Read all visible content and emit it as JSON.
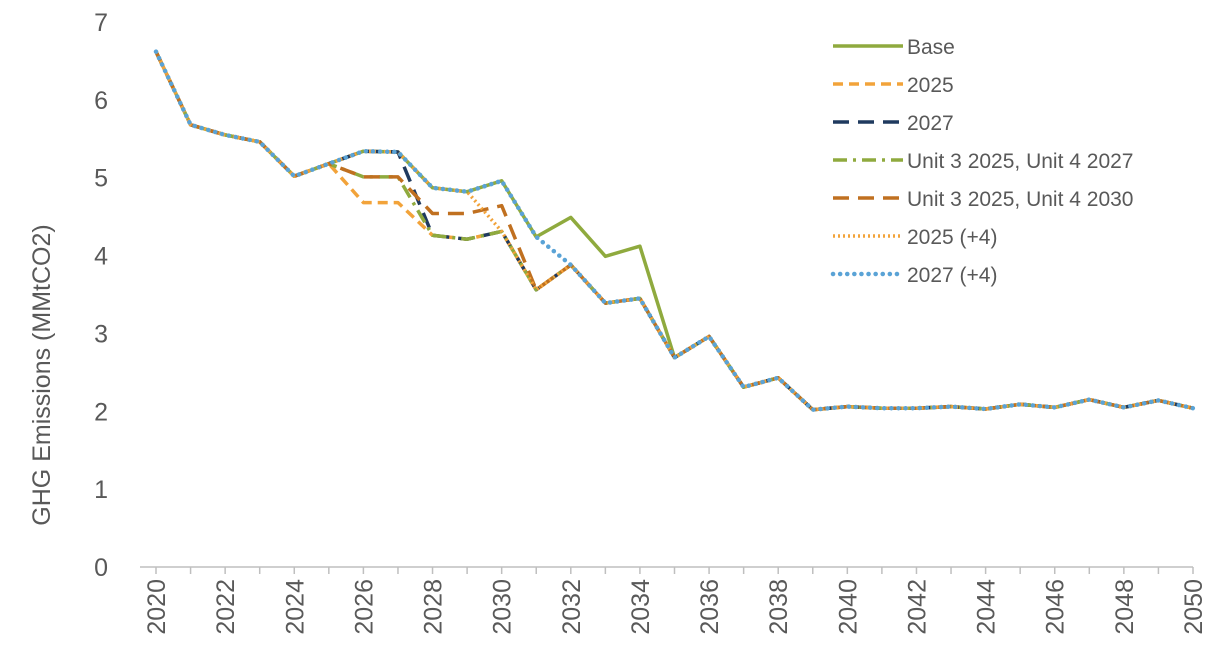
{
  "chart_data": {
    "type": "line",
    "title": "",
    "xlabel": "",
    "ylabel": "GHG Emissions (MMtCO2)",
    "ylim": [
      0,
      7
    ],
    "yticks": [
      0,
      1,
      2,
      3,
      4,
      5,
      6,
      7
    ],
    "xticks": [
      2020,
      2022,
      2024,
      2026,
      2028,
      2030,
      2032,
      2034,
      2036,
      2038,
      2040,
      2042,
      2044,
      2046,
      2048,
      2050
    ],
    "x": [
      2020,
      2021,
      2022,
      2023,
      2024,
      2025,
      2026,
      2027,
      2028,
      2029,
      2030,
      2031,
      2032,
      2033,
      2034,
      2035,
      2036,
      2037,
      2038,
      2039,
      2040,
      2041,
      2042,
      2043,
      2044,
      2045,
      2046,
      2047,
      2048,
      2049,
      2050
    ],
    "grid": false,
    "legend_position": "top-right",
    "series": [
      {
        "name": "Base",
        "color": "#8faa3e",
        "dash": "solid",
        "values": [
          6.62,
          5.68,
          5.55,
          5.46,
          5.02,
          5.18,
          5.34,
          5.33,
          4.87,
          4.82,
          4.96,
          4.24,
          4.49,
          3.99,
          4.12,
          2.69,
          2.96,
          2.31,
          2.43,
          2.02,
          2.06,
          2.04,
          2.04,
          2.06,
          2.03,
          2.09,
          2.05,
          2.15,
          2.05,
          2.14,
          2.04
        ]
      },
      {
        "name": "2025",
        "color": "#f2a33a",
        "dash": "dash",
        "values": [
          6.62,
          5.68,
          5.55,
          5.46,
          5.02,
          5.18,
          4.68,
          4.68,
          4.26,
          4.21,
          4.31,
          3.56,
          3.88,
          3.39,
          3.45,
          2.69,
          2.96,
          2.31,
          2.43,
          2.02,
          2.06,
          2.04,
          2.04,
          2.06,
          2.03,
          2.09,
          2.05,
          2.15,
          2.05,
          2.14,
          2.04
        ]
      },
      {
        "name": "2027",
        "color": "#1f3a5f",
        "dash": "longdash",
        "values": [
          6.62,
          5.68,
          5.55,
          5.46,
          5.02,
          5.18,
          5.34,
          5.33,
          4.26,
          4.21,
          4.31,
          3.56,
          3.88,
          3.39,
          3.45,
          2.69,
          2.96,
          2.31,
          2.43,
          2.02,
          2.06,
          2.04,
          2.04,
          2.06,
          2.03,
          2.09,
          2.05,
          2.15,
          2.05,
          2.14,
          2.04
        ]
      },
      {
        "name": "Unit 3 2025, Unit 4 2027",
        "color": "#8faa3e",
        "dash": "dashdot",
        "values": [
          6.62,
          5.68,
          5.55,
          5.46,
          5.02,
          5.18,
          5.01,
          5.01,
          4.26,
          4.21,
          4.31,
          3.56,
          3.88,
          3.39,
          3.45,
          2.69,
          2.96,
          2.31,
          2.43,
          2.02,
          2.06,
          2.04,
          2.04,
          2.06,
          2.03,
          2.09,
          2.05,
          2.15,
          2.05,
          2.14,
          2.04
        ]
      },
      {
        "name": "Unit 3 2025, Unit 4 2030",
        "color": "#c07020",
        "dash": "longdash",
        "values": [
          6.62,
          5.68,
          5.55,
          5.46,
          5.02,
          5.18,
          5.01,
          5.01,
          4.54,
          4.54,
          4.64,
          3.56,
          3.88,
          3.39,
          3.45,
          2.69,
          2.96,
          2.31,
          2.43,
          2.02,
          2.06,
          2.04,
          2.04,
          2.06,
          2.03,
          2.09,
          2.05,
          2.15,
          2.05,
          2.14,
          2.04
        ]
      },
      {
        "name": "2025 (+4)",
        "color": "#f2a33a",
        "dash": "dot",
        "values": [
          6.62,
          5.68,
          5.55,
          5.46,
          5.02,
          5.18,
          5.34,
          5.33,
          4.87,
          4.82,
          4.31,
          3.56,
          3.88,
          3.39,
          3.45,
          2.69,
          2.96,
          2.31,
          2.43,
          2.02,
          2.06,
          2.04,
          2.04,
          2.06,
          2.03,
          2.09,
          2.05,
          2.15,
          2.05,
          2.14,
          2.04
        ]
      },
      {
        "name": "2027 (+4)",
        "color": "#5aa3d6",
        "dash": "roundot",
        "values": [
          6.62,
          5.68,
          5.55,
          5.46,
          5.02,
          5.18,
          5.34,
          5.33,
          4.87,
          4.82,
          4.96,
          4.24,
          3.88,
          3.39,
          3.45,
          2.69,
          2.96,
          2.31,
          2.43,
          2.02,
          2.06,
          2.04,
          2.04,
          2.06,
          2.03,
          2.09,
          2.05,
          2.15,
          2.05,
          2.14,
          2.04
        ]
      }
    ]
  }
}
